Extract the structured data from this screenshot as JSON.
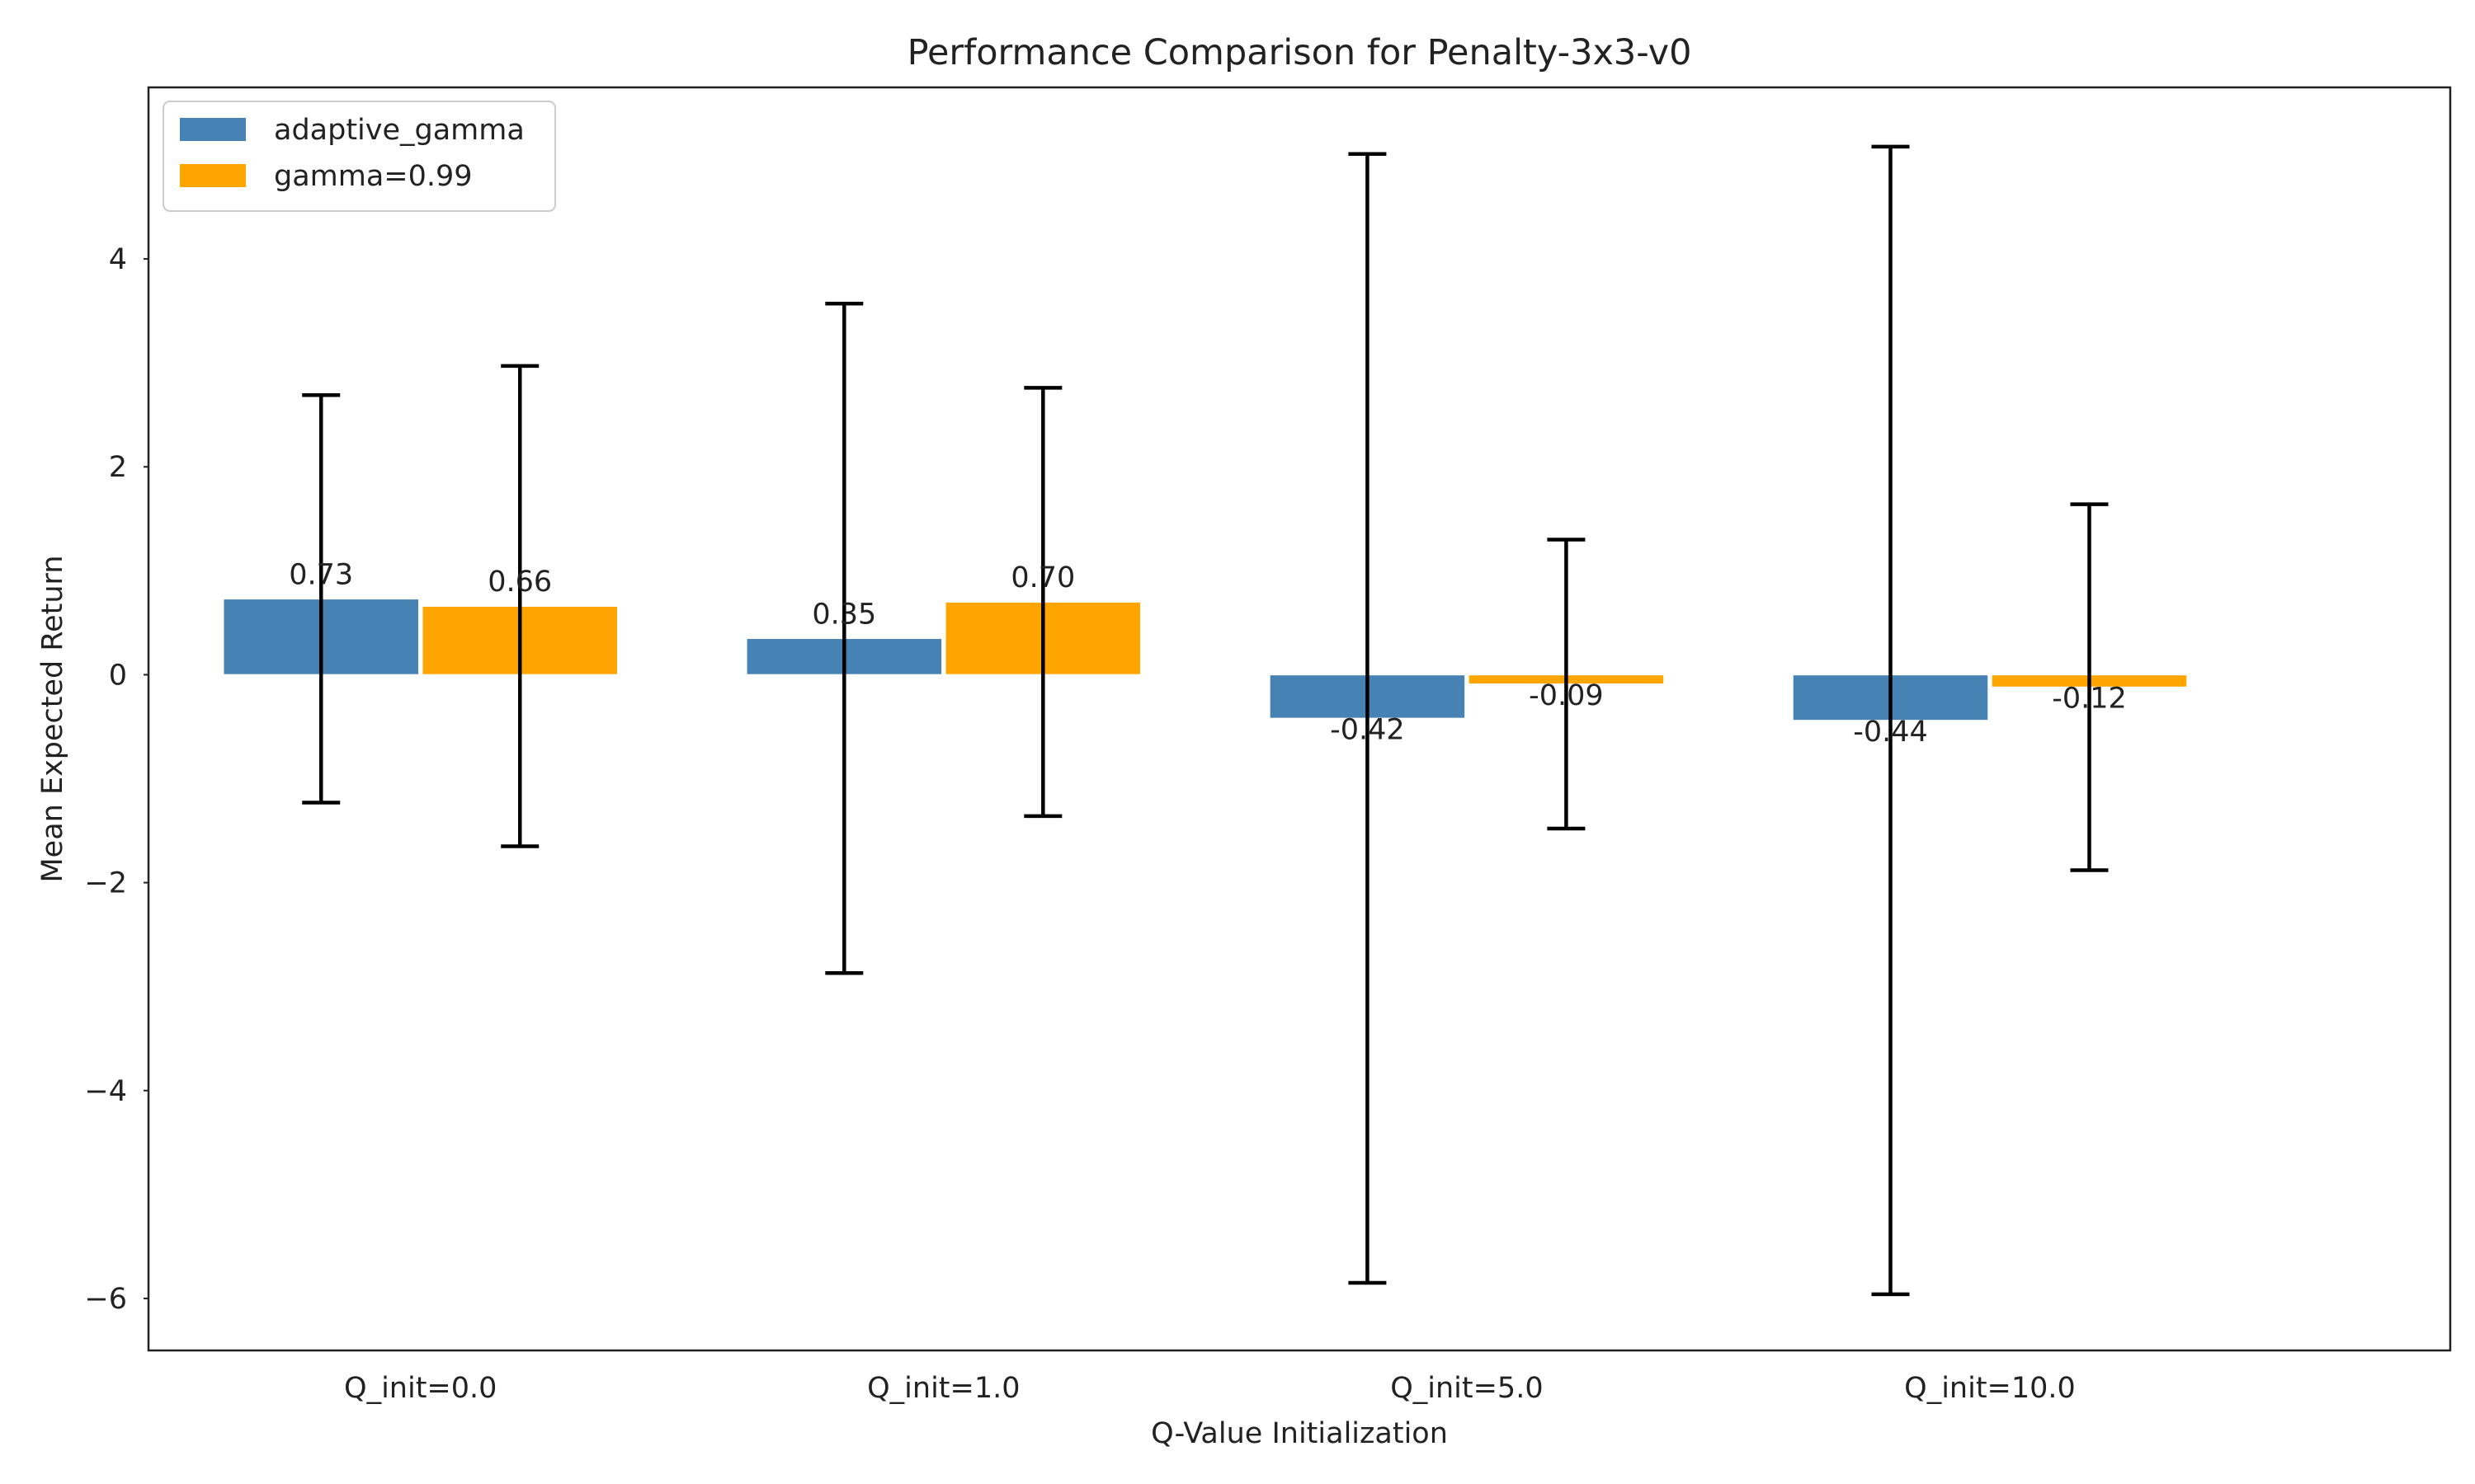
{
  "chart_data": {
    "type": "bar",
    "title": "Performance Comparison for Penalty-3x3-v0",
    "xlabel": "Q-Value Initialization",
    "ylabel": "Mean Expected Return",
    "categories": [
      "Q_init=0.0",
      "Q_init=1.0",
      "Q_init=5.0",
      "Q_init=10.0"
    ],
    "series": [
      {
        "name": "adaptive_gamma",
        "color": "#4682b4",
        "values": [
          0.73,
          0.35,
          -0.42,
          -0.44
        ],
        "labels": [
          "0.73",
          "0.35",
          "-0.42",
          "-0.44"
        ],
        "error": [
          1.96,
          3.22,
          5.43,
          5.52
        ]
      },
      {
        "name": "gamma=0.99",
        "color": "#ffa500",
        "values": [
          0.66,
          0.7,
          -0.09,
          -0.12
        ],
        "labels": [
          "0.66",
          "0.70",
          "-0.09",
          "-0.12"
        ],
        "error": [
          2.31,
          2.06,
          1.39,
          1.76
        ]
      }
    ],
    "ylim": [
      -6.5,
      5.65
    ],
    "yticks": [
      -6,
      -4,
      -2,
      0,
      2,
      4
    ],
    "ytick_labels": [
      "−6",
      "−4",
      "−2",
      "0",
      "2",
      "4"
    ],
    "grid": false,
    "legend": "upper-left"
  }
}
